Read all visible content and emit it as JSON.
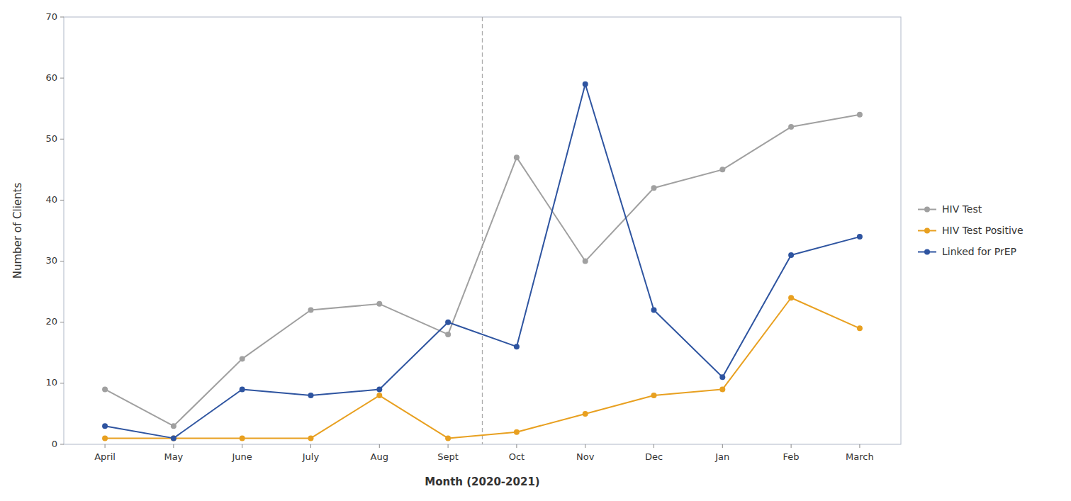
{
  "chart_data": {
    "type": "line",
    "x_label": "Month (2020-2021)",
    "y_label": "Number of Clients",
    "categories": [
      "April",
      "May",
      "June",
      "July",
      "Aug",
      "Sept",
      "Oct",
      "Nov",
      "Dec",
      "Jan",
      "Feb",
      "March"
    ],
    "series": [
      {
        "name": "HIV Test",
        "color": "#a0a0a0",
        "marker": "circle",
        "values": [
          9,
          3,
          14,
          22,
          23,
          18,
          47,
          30,
          42,
          45,
          52,
          54
        ]
      },
      {
        "name": "HIV Test Positive",
        "color": "#e8a020",
        "marker": "circle",
        "values": [
          1,
          1,
          1,
          1,
          8,
          1,
          2,
          5,
          8,
          9,
          24,
          19
        ]
      },
      {
        "name": "Linked for PrEP",
        "color": "#2e54a0",
        "marker": "circle",
        "values": [
          3,
          1,
          9,
          8,
          9,
          20,
          16,
          59,
          22,
          11,
          31,
          34
        ]
      }
    ],
    "ylim": [
      0,
      70
    ],
    "yticks": [
      0,
      10,
      20,
      30,
      40,
      50,
      60,
      70
    ],
    "grid": false,
    "legend": "right",
    "reference_lines": [
      {
        "between": [
          "Sept",
          "Oct"
        ],
        "line_style": "dashed"
      }
    ]
  }
}
